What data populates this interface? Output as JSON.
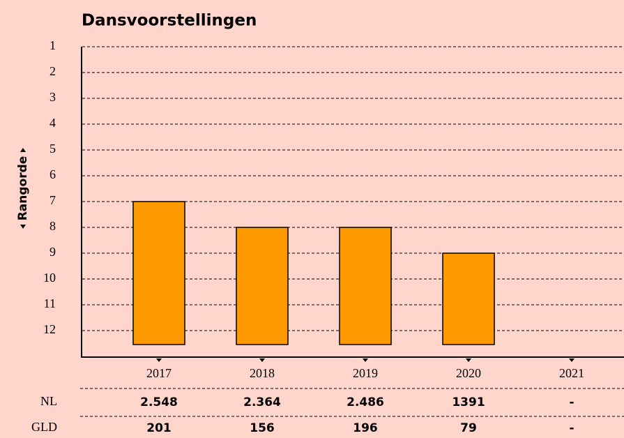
{
  "chart_data": {
    "type": "bar",
    "title": "Dansvoorstellingen",
    "y_label": "Rangorde",
    "categories": [
      "2017",
      "2018",
      "2019",
      "2020",
      "2021"
    ],
    "values": [
      7,
      8,
      8,
      9,
      null
    ],
    "color": "#ff9900",
    "ylim": [
      1,
      13
    ],
    "y_inverted": true,
    "yticks": [
      1,
      2,
      3,
      4,
      5,
      6,
      7,
      8,
      9,
      10,
      11,
      12
    ],
    "grid": true,
    "table": [
      {
        "label": "NL",
        "values": [
          "2.548",
          "2.364",
          "2.486",
          "1391",
          "-"
        ]
      },
      {
        "label": "GLD",
        "values": [
          "201",
          "156",
          "196",
          "79",
          "-"
        ]
      }
    ]
  }
}
